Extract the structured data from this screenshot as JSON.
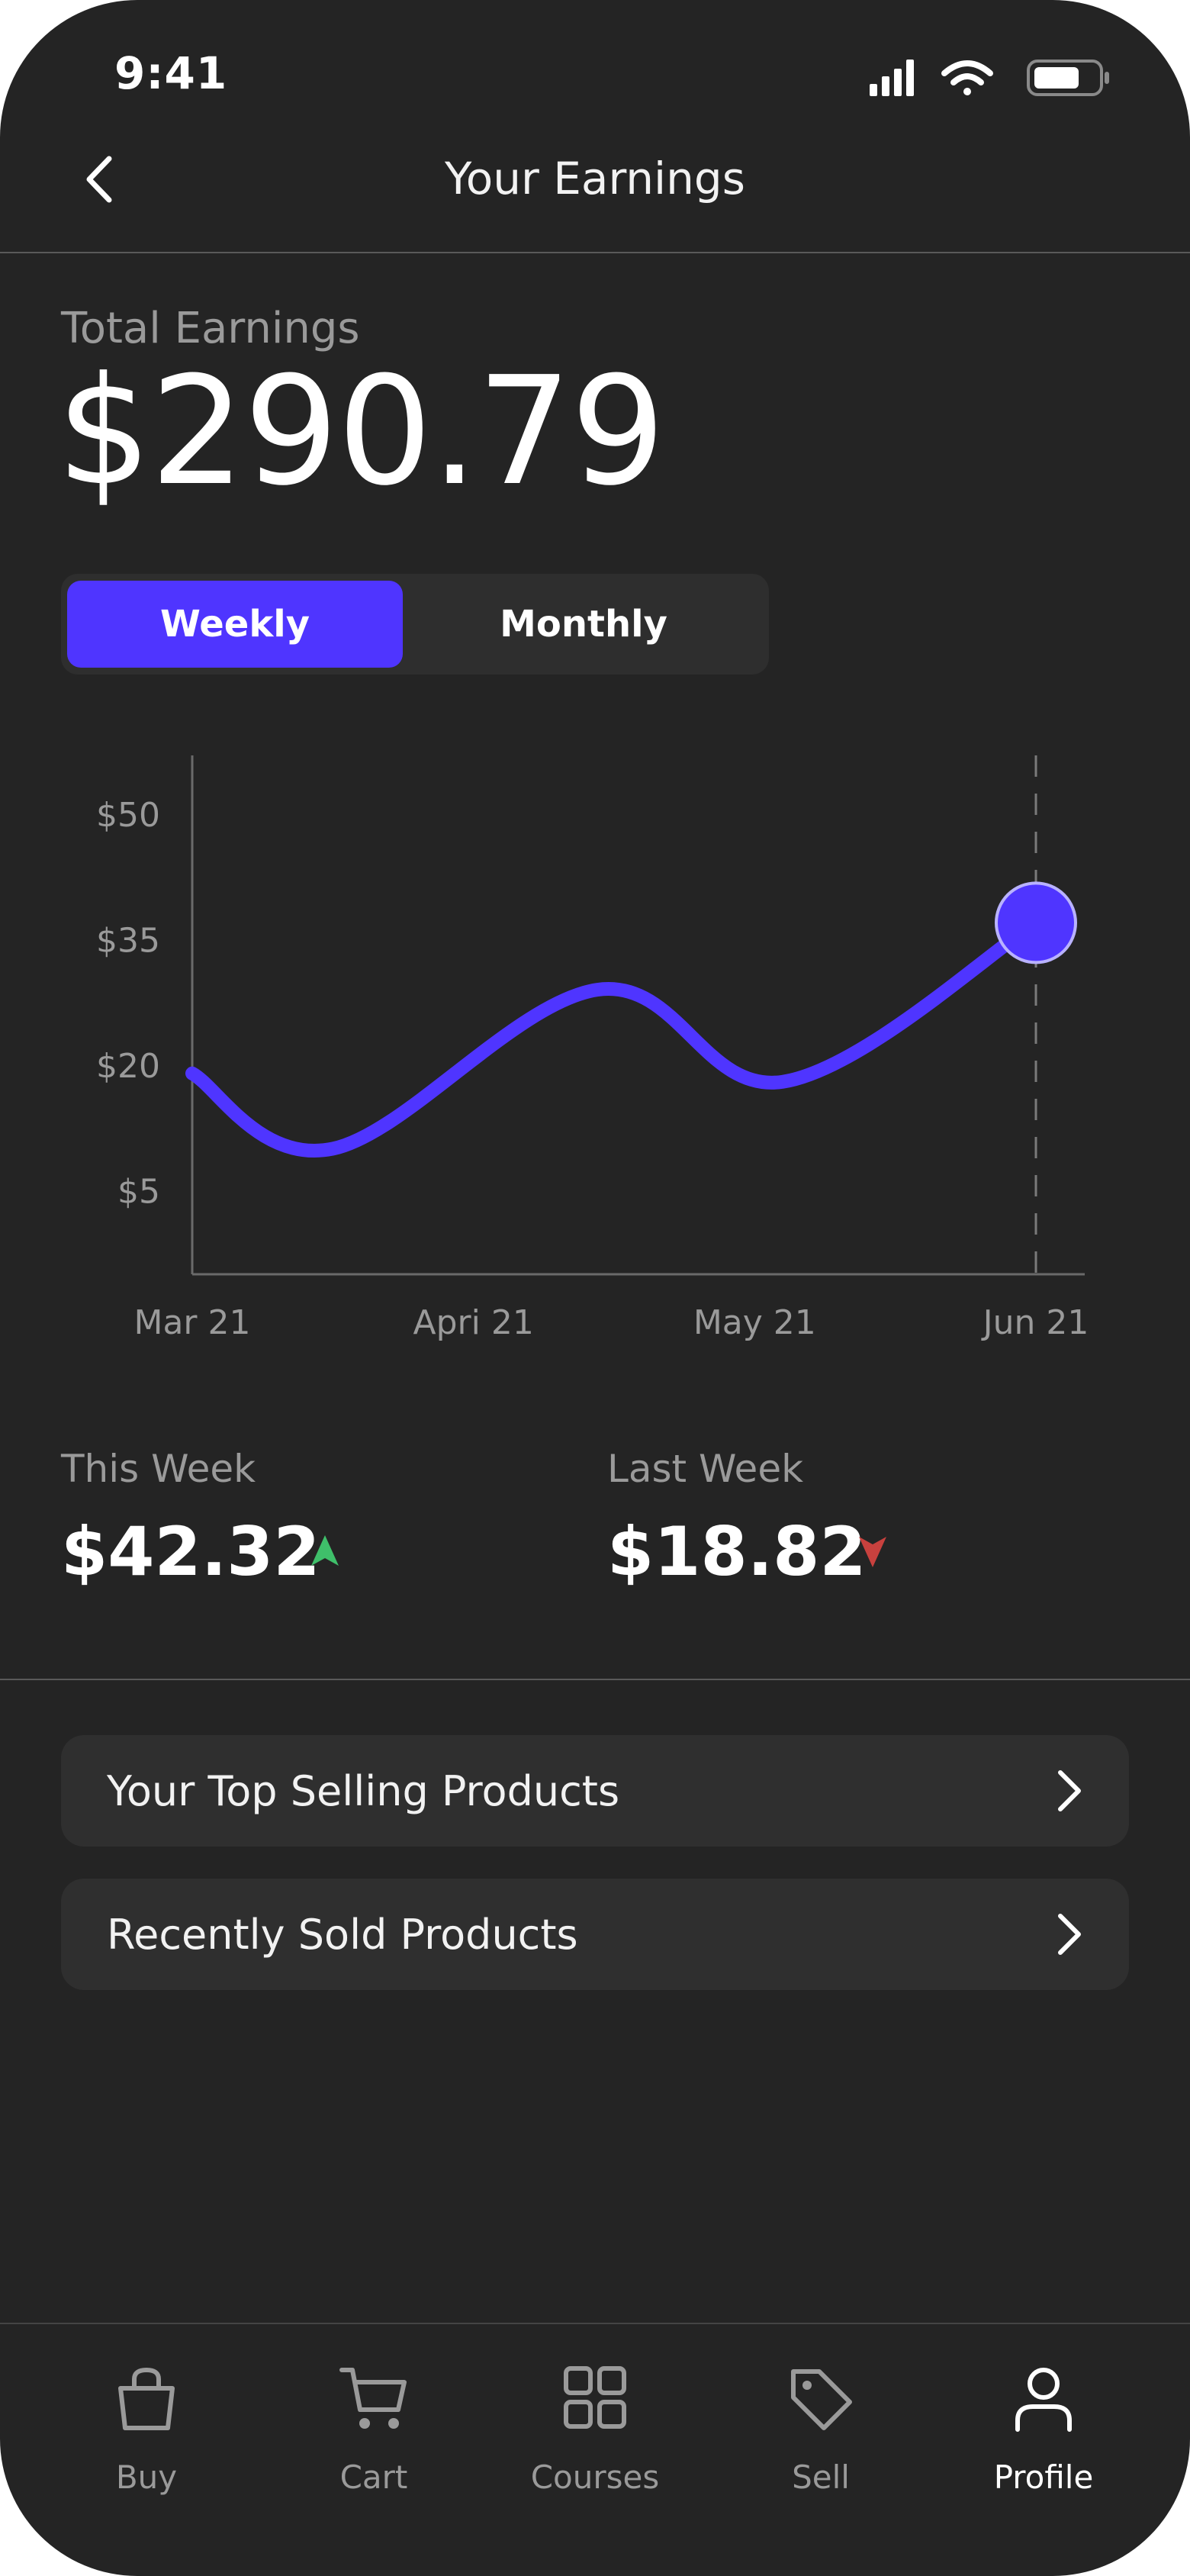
{
  "status_bar": {
    "time": "9:41"
  },
  "header": {
    "title": "Your Earnings",
    "back_icon": "chevron-left-icon"
  },
  "total": {
    "label": "Total Earnings",
    "value": "$290.79"
  },
  "period_toggle": {
    "options": [
      "Weekly",
      "Monthly"
    ],
    "selected": "Weekly"
  },
  "colors": {
    "accent": "#4f35ff",
    "background": "#242424",
    "card": "#2f2f2f",
    "up": "#3fbf6a",
    "down": "#c8413e",
    "muted_text": "#9a9a9a"
  },
  "chart_data": {
    "type": "line",
    "x": [
      "Mar 21",
      "Apri 21",
      "May 21",
      "Jun 21"
    ],
    "y_ticks": [
      "$50",
      "$35",
      "$20",
      "$5"
    ],
    "y_tick_values": [
      50,
      35,
      20,
      5
    ],
    "ylim": [
      -5,
      57
    ],
    "series": [
      {
        "points": [
          {
            "x": 0.0,
            "y": 19
          },
          {
            "x": 0.5,
            "y": 10
          },
          {
            "x": 1.44,
            "y": 29
          },
          {
            "x": 2.1,
            "y": 18
          },
          {
            "x": 3.0,
            "y": 37
          }
        ]
      }
    ],
    "highlight": {
      "x": "Jun 21",
      "y": 37
    },
    "grid": false
  },
  "stats": {
    "this_week": {
      "label": "This Week",
      "value": "$42.32",
      "trend": "up"
    },
    "last_week": {
      "label": "Last Week",
      "value": "$18.82",
      "trend": "down"
    }
  },
  "links": [
    {
      "label": "Your Top Selling Products"
    },
    {
      "label": "Recently Sold Products"
    }
  ],
  "tabbar": {
    "items": [
      {
        "label": "Buy",
        "icon": "shopping-bag-icon"
      },
      {
        "label": "Cart",
        "icon": "cart-icon"
      },
      {
        "label": "Courses",
        "icon": "grid-icon"
      },
      {
        "label": "Sell",
        "icon": "tag-icon"
      },
      {
        "label": "Profile",
        "icon": "user-icon"
      }
    ],
    "active": "Profile"
  }
}
